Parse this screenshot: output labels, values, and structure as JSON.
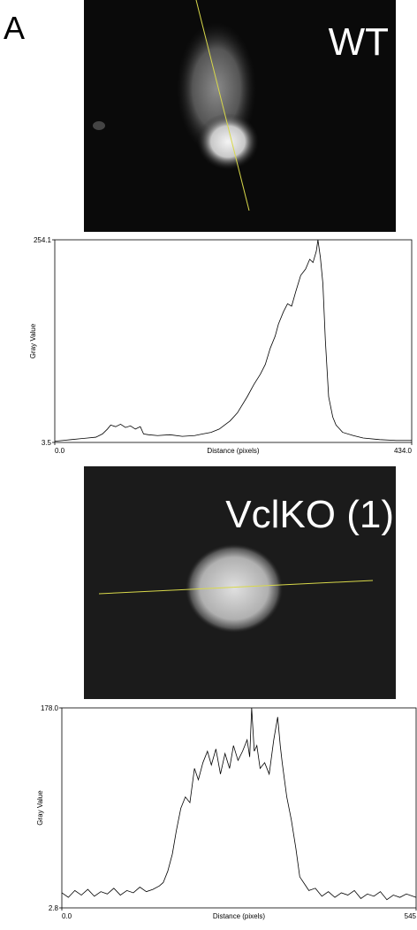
{
  "figure_label": "A",
  "images": [
    {
      "label": "WT"
    },
    {
      "label": "VclKO (1)"
    }
  ],
  "chart_data": [
    {
      "type": "line",
      "xlabel": "Distance (pixels)",
      "ylabel": "Gray Value",
      "color": "#000000",
      "xlim": [
        0,
        434
      ],
      "ylim": [
        3.5,
        254.1
      ],
      "xticks": [
        {
          "value": 0,
          "label": "0.0"
        },
        {
          "value": 434,
          "label": "434.0"
        }
      ],
      "yticks": [
        3.5,
        254.1
      ],
      "x": [
        0,
        10,
        20,
        30,
        40,
        50,
        58,
        64,
        68,
        74,
        80,
        86,
        92,
        98,
        104,
        108,
        114,
        125,
        140,
        155,
        170,
        180,
        190,
        200,
        213,
        222,
        234,
        242,
        250,
        256,
        262,
        268,
        272,
        278,
        283,
        288,
        293,
        299,
        305,
        310,
        314,
        318,
        320,
        323,
        326,
        329,
        333,
        338,
        342,
        350,
        363,
        375,
        395,
        415,
        434
      ],
      "values": [
        5,
        6,
        7,
        8,
        9,
        10,
        14,
        20,
        25,
        23,
        26,
        22,
        24,
        20,
        23,
        14,
        13,
        12,
        13,
        11,
        12,
        14,
        16,
        20,
        30,
        40,
        60,
        75,
        88,
        100,
        120,
        135,
        150,
        165,
        175,
        172,
        190,
        210,
        218,
        230,
        226,
        240,
        254,
        232,
        200,
        130,
        60,
        35,
        25,
        16,
        12,
        9,
        7,
        6,
        6
      ]
    },
    {
      "type": "line",
      "xlabel": "Distance (pixels)",
      "ylabel": "Gray Value",
      "color": "#000000",
      "xlim": [
        0,
        545
      ],
      "ylim": [
        2.8,
        178
      ],
      "xticks": [
        {
          "value": 0,
          "label": "0.0"
        },
        545
      ],
      "yticks": [
        2.8,
        {
          "value": 178,
          "label": "178.0"
        }
      ],
      "x": [
        0,
        10,
        20,
        30,
        40,
        50,
        60,
        70,
        80,
        90,
        100,
        110,
        120,
        130,
        140,
        150,
        156,
        163,
        170,
        176,
        183,
        190,
        197,
        204,
        210,
        217,
        224,
        230,
        237,
        244,
        251,
        258,
        264,
        271,
        278,
        285,
        289,
        292,
        296,
        300,
        305,
        312,
        319,
        326,
        332,
        336,
        339,
        346,
        353,
        360,
        366,
        373,
        380,
        390,
        400,
        410,
        420,
        430,
        440,
        450,
        460,
        470,
        480,
        490,
        500,
        510,
        520,
        530,
        545
      ],
      "values": [
        16,
        12,
        18,
        14,
        19,
        13,
        17,
        15,
        20,
        14,
        18,
        16,
        21,
        17,
        19,
        22,
        25,
        35,
        50,
        70,
        90,
        100,
        95,
        125,
        115,
        130,
        140,
        128,
        142,
        120,
        138,
        125,
        145,
        132,
        140,
        150,
        135,
        178,
        140,
        145,
        125,
        130,
        120,
        150,
        170,
        145,
        130,
        100,
        80,
        55,
        30,
        24,
        18,
        20,
        13,
        17,
        12,
        16,
        14,
        18,
        11,
        15,
        13,
        17,
        10,
        14,
        12,
        15,
        12
      ]
    }
  ]
}
